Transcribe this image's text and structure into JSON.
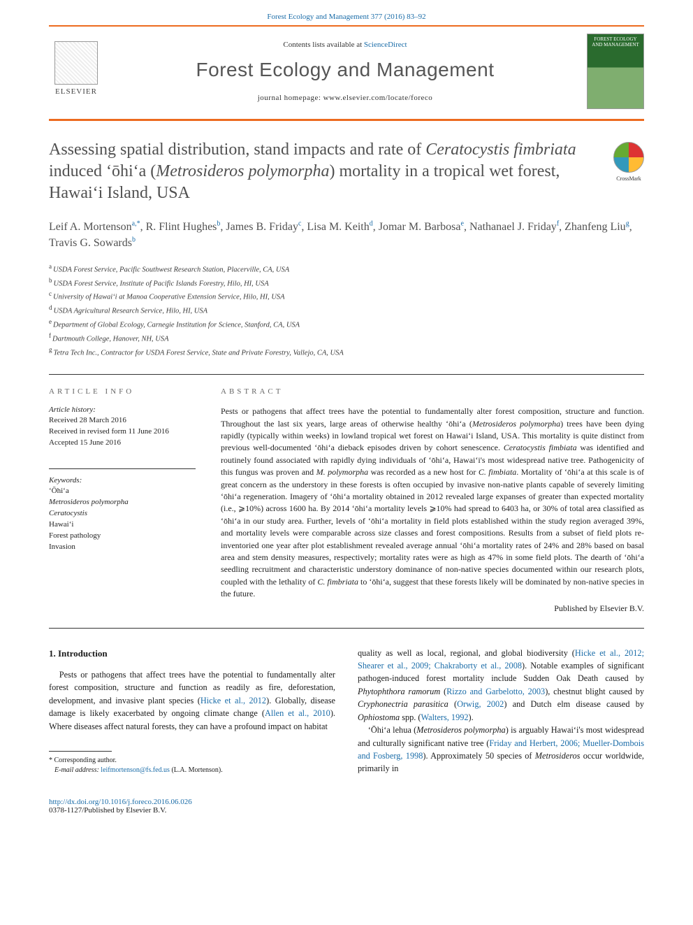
{
  "header": {
    "journal_ref": "Forest Ecology and Management 377 (2016) 83–92",
    "contents_text_prefix": "Contents lists available at ",
    "contents_link": "ScienceDirect",
    "journal_title": "Forest Ecology and Management",
    "homepage_text": "journal homepage: www.elsevier.com/locate/foreco",
    "elsevier_label": "ELSEVIER",
    "cover_title": "FOREST ECOLOGY AND MANAGEMENT",
    "crossmark_label": "CrossMark"
  },
  "article": {
    "title_html": "Assessing spatial distribution, stand impacts and rate of <span class='ital'>Ceratocystis fimbriata</span> induced ʻōhiʻa (<span class='ital'>Metrosideros polymorpha</span>) mortality in a tropical wet forest, Hawaiʻi Island, USA",
    "authors_html": "Leif A. Mortenson<sup>a,*</sup>, R. Flint Hughes<sup>b</sup>, James B. Friday<sup>c</sup>, Lisa M. Keith<sup>d</sup>, Jomar M. Barbosa<sup>e</sup>, Nathanael J. Friday<sup>f</sup>, Zhanfeng Liu<sup>g</sup>, Travis G. Sowards<sup>b</sup>",
    "affiliations": [
      {
        "key": "a",
        "text": "USDA Forest Service, Pacific Southwest Research Station, Placerville, CA, USA"
      },
      {
        "key": "b",
        "text": "USDA Forest Service, Institute of Pacific Islands Forestry, Hilo, HI, USA"
      },
      {
        "key": "c",
        "text": "University of Hawaiʻi at Manoa Cooperative Extension Service, Hilo, HI, USA"
      },
      {
        "key": "d",
        "text": "USDA Agricultural Research Service, Hilo, HI, USA"
      },
      {
        "key": "e",
        "text": "Department of Global Ecology, Carnegie Institution for Science, Stanford, CA, USA"
      },
      {
        "key": "f",
        "text": "Dartmouth College, Hanover, NH, USA"
      },
      {
        "key": "g",
        "text": "Tetra Tech Inc., Contractor for USDA Forest Service, State and Private Forestry, Vallejo, CA, USA"
      }
    ]
  },
  "info": {
    "heading": "article info",
    "history_label": "Article history:",
    "history": [
      "Received 28 March 2016",
      "Received in revised form 11 June 2016",
      "Accepted 15 June 2016"
    ],
    "keywords_label": "Keywords:",
    "keywords": [
      "ʻŌhiʻa",
      "Metrosideros polymorpha",
      "Ceratocystis",
      "Hawaiʻi",
      "Forest pathology",
      "Invasion"
    ]
  },
  "abstract": {
    "heading": "abstract",
    "text_html": "Pests or pathogens that affect trees have the potential to fundamentally alter forest composition, structure and function. Throughout the last six years, large areas of otherwise healthy ʻōhiʻa (<span class='ital'>Metrosideros polymorpha</span>) trees have been dying rapidly (typically within weeks) in lowland tropical wet forest on Hawaiʻi Island, USA. This mortality is quite distinct from previous well-documented ʻōhiʻa dieback episodes driven by cohort senescence. <span class='ital'>Ceratocystis fimbiata</span> was identified and routinely found associated with rapidly dying individuals of ʻōhiʻa, Hawaiʻi's most widespread native tree. Pathogenicity of this fungus was proven and <span class='ital'>M. polymorpha</span> was recorded as a new host for <span class='ital'>C. fimbiata</span>. Mortality of ʻōhiʻa at this scale is of great concern as the understory in these forests is often occupied by invasive non-native plants capable of severely limiting ʻōhiʻa regeneration. Imagery of ʻōhiʻa mortality obtained in 2012 revealed large expanses of greater than expected mortality (i.e., ⩾10%) across 1600 ha. By 2014 ʻōhiʻa mortality levels ⩾10% had spread to 6403 ha, or 30% of total area classified as ʻōhiʻa in our study area. Further, levels of ʻōhiʻa mortality in field plots established within the study region averaged 39%, and mortality levels were comparable across size classes and forest compositions. Results from a subset of field plots re-inventoried one year after plot establishment revealed average annual ʻōhiʻa mortality rates of 24% and 28% based on basal area and stem density measures, respectively; mortality rates were as high as 47% in some field plots. The dearth of ʻōhiʻa seedling recruitment and characteristic understory dominance of non-native species documented within our research plots, coupled with the lethality of <span class='ital'>C. fimbriata</span> to ʻōhiʻa, suggest that these forests likely will be dominated by non-native species in the future.",
    "publisher_line": "Published by Elsevier B.V."
  },
  "body": {
    "section_heading": "1. Introduction",
    "left_p1_html": "Pests or pathogens that affect trees have the potential to fundamentally alter forest composition, structure and function as readily as fire, deforestation, development, and invasive plant species (<a href='#'>Hicke et al., 2012</a>). Globally, disease damage is likely exacerbated by ongoing climate change (<a href='#'>Allen et al., 2010</a>). Where diseases affect natural forests, they can have a profound impact on habitat",
    "right_p1_html": "quality as well as local, regional, and global biodiversity (<a href='#'>Hicke et al., 2012; Shearer et al., 2009; Chakraborty et al., 2008</a>). Notable examples of significant pathogen-induced forest mortality include Sudden Oak Death caused by <span class='ital'>Phytophthora ramorum</span> (<a href='#'>Rizzo and Garbelotto, 2003</a>), chestnut blight caused by <span class='ital'>Cryphonectria parasitica</span> (<a href='#'>Orwig, 2002</a>) and Dutch elm disease caused by <span class='ital'>Ophiostoma</span> spp. (<a href='#'>Walters, 1992</a>).",
    "right_p2_html": "ʻŌhiʻa lehua (<span class='ital'>Metrosideros polymorpha</span>) is arguably Hawaiʻi's most widespread and culturally significant native tree (<a href='#'>Friday and Herbert, 2006; Mueller-Dombois and Fosberg, 1998</a>). Approximately 50 species of <span class='ital'>Metrosideros</span> occur worldwide, primarily in",
    "footnote_corresponding": "* Corresponding author.",
    "footnote_email_label": "E-mail address:",
    "footnote_email": "leifmortenson@fs.fed.us",
    "footnote_email_name": " (L.A. Mortenson)."
  },
  "footer": {
    "doi": "http://dx.doi.org/10.1016/j.foreco.2016.06.026",
    "copyright": "0378-1127/Published by Elsevier B.V."
  },
  "colors": {
    "accent_orange": "#ed6b1f",
    "link_blue": "#1a6ca8",
    "text_main": "#1a1a1a",
    "text_grey": "#505050"
  }
}
